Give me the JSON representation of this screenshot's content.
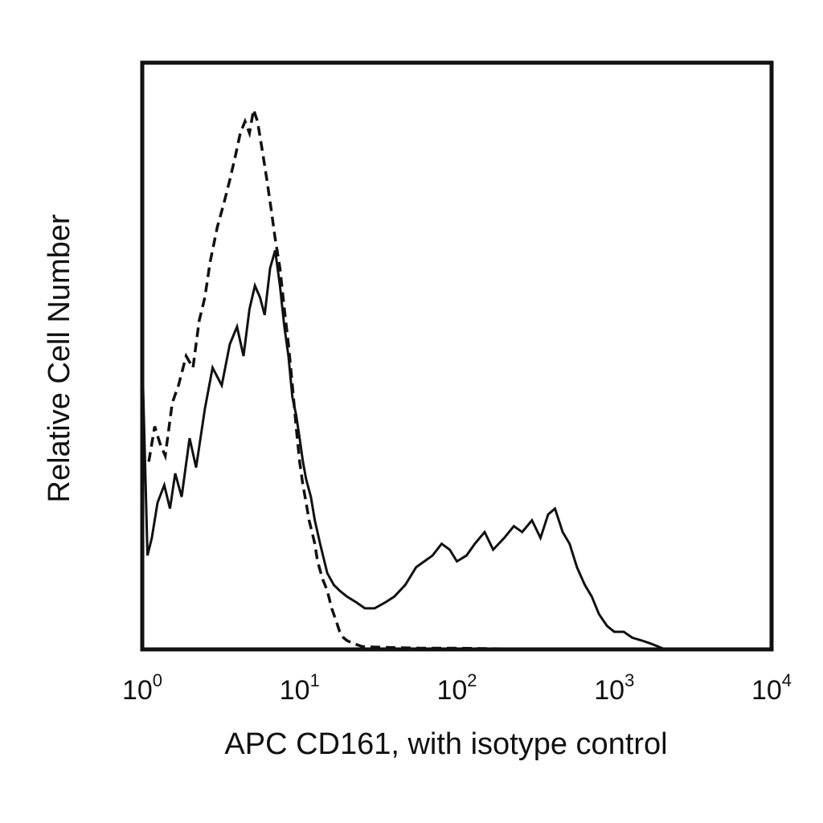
{
  "chart_data": {
    "type": "line",
    "title": "",
    "xlabel": "APC CD161, with isotype control",
    "ylabel": "Relative Cell Number",
    "x_scale": "log",
    "xlim": [
      1,
      10000
    ],
    "ylim": [
      0,
      100
    ],
    "y_ticks_shown": false,
    "grid": false,
    "legend": "none",
    "x_ticks": [
      {
        "base": "10",
        "exp": "0",
        "value": 1
      },
      {
        "base": "10",
        "exp": "1",
        "value": 10
      },
      {
        "base": "10",
        "exp": "2",
        "value": 100
      },
      {
        "base": "10",
        "exp": "3",
        "value": 1000
      },
      {
        "base": "10",
        "exp": "4",
        "value": 10000
      }
    ],
    "series": [
      {
        "style": "solid",
        "color": "#111111",
        "x": [
          1.0,
          1.08,
          1.15,
          1.25,
          1.38,
          1.5,
          1.62,
          1.78,
          2.0,
          2.2,
          2.5,
          2.8,
          3.2,
          3.6,
          4.0,
          4.4,
          4.8,
          5.2,
          5.6,
          6.0,
          6.5,
          7.0,
          7.5,
          8.0,
          8.5,
          9.0,
          9.5,
          10.0,
          10.5,
          11.0,
          11.8,
          12.5,
          13.5,
          15.0,
          16.5,
          18.0,
          20.0,
          23.0,
          26.0,
          30.0,
          35.0,
          40.0,
          47.0,
          55.0,
          62.0,
          70.0,
          80.0,
          90.0,
          100.0,
          115.0,
          130.0,
          150.0,
          170.0,
          200.0,
          230.0,
          260.0,
          300.0,
          340.0,
          380.0,
          420.0,
          470.0,
          520.0,
          580.0,
          650.0,
          720.0,
          800.0,
          900.0,
          1000.0,
          1150.0,
          1300.0,
          1500.0,
          1700.0,
          1900.0,
          2100.0,
          2500.0,
          3000.0,
          4000.0,
          6000.0,
          10000.0
        ],
        "y": [
          50,
          16,
          19,
          25,
          28,
          24,
          30,
          26,
          36,
          31,
          41,
          48,
          45,
          52,
          55,
          50,
          58,
          62,
          60,
          57,
          65,
          68,
          62,
          55,
          50,
          43,
          40,
          36,
          32,
          29,
          26,
          22,
          18,
          13,
          11,
          10,
          9,
          8,
          7,
          7,
          8,
          9,
          11,
          14,
          15,
          16,
          18,
          17,
          15,
          16,
          18,
          20,
          17,
          19,
          21,
          20,
          22,
          19,
          23,
          24,
          20,
          18,
          14,
          11,
          9,
          6,
          4,
          3,
          3,
          2,
          1.5,
          1,
          0.5,
          0,
          0,
          0,
          0,
          0,
          0
        ]
      },
      {
        "style": "dashed",
        "color": "#111111",
        "x": [
          1.1,
          1.2,
          1.3,
          1.4,
          1.55,
          1.7,
          1.9,
          2.1,
          2.3,
          2.5,
          2.7,
          3.0,
          3.3,
          3.6,
          3.9,
          4.2,
          4.5,
          4.8,
          5.1,
          5.4,
          5.8,
          6.2,
          6.6,
          7.0,
          7.5,
          8.0,
          8.5,
          9.0,
          9.5,
          10.0,
          10.5,
          11.0,
          11.5,
          12.0,
          12.5,
          13.0,
          14.0,
          15.0,
          16.0,
          17.0,
          18.0,
          19.0,
          20.0,
          22.0,
          25.0,
          30.0,
          40.0,
          60.0,
          100.0,
          200.0,
          500.0,
          1000.0,
          2000.0
        ],
        "y": [
          32,
          38,
          35,
          33,
          42,
          45,
          50,
          48,
          56,
          60,
          66,
          72,
          76,
          80,
          84,
          88,
          90,
          88,
          92,
          90,
          85,
          80,
          75,
          70,
          65,
          58,
          52,
          45,
          38,
          32,
          28,
          25,
          22,
          20,
          18,
          15,
          12,
          10,
          7,
          5,
          3,
          2,
          1.5,
          1,
          0.5,
          0.4,
          0.3,
          0.2,
          0.2,
          0.1,
          0.1,
          0,
          0
        ]
      }
    ]
  }
}
